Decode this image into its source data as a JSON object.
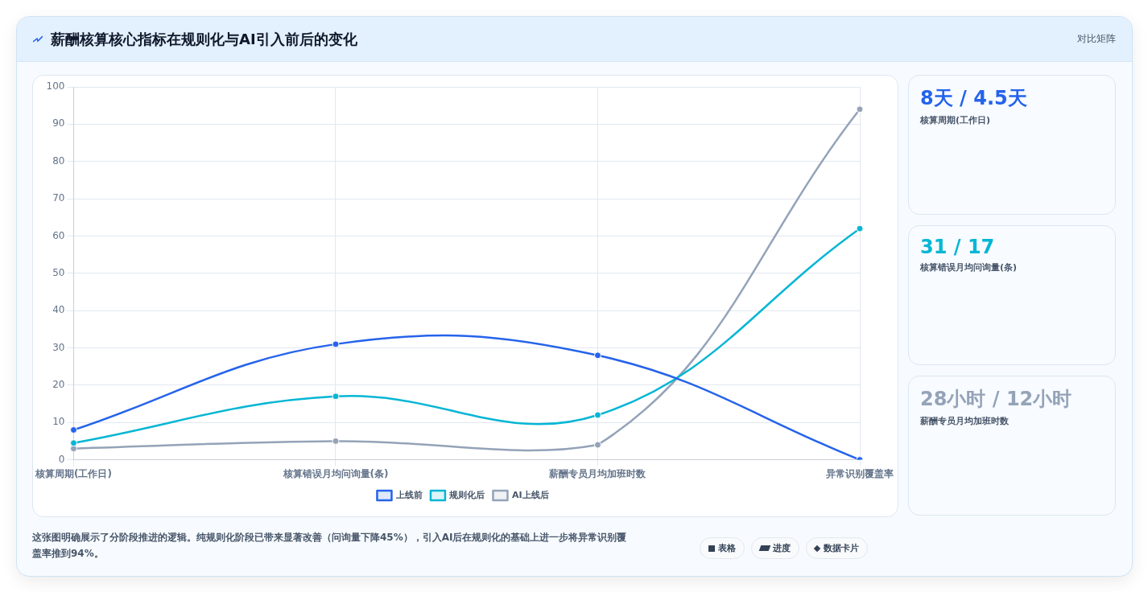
{
  "chart_data": {
    "type": "line",
    "title": "薪酬核算核心指标在规则化与AI引入前后的变化",
    "categories": [
      "核算周期(工作日)",
      "核算错误月均问询量(条)",
      "薪酬专员月均加班时数",
      "异常识别覆盖率"
    ],
    "series": [
      {
        "name": "上线前",
        "color": "#2563eb",
        "values": [
          8,
          31,
          28,
          0
        ]
      },
      {
        "name": "规则化后",
        "color": "#06b6d4",
        "values": [
          4.5,
          17,
          12,
          62
        ]
      },
      {
        "name": "AI上线后",
        "color": "#94a3b8",
        "values": [
          3,
          5,
          4,
          94
        ]
      }
    ],
    "ylim": [
      0,
      100
    ],
    "yticks": [
      0,
      10,
      20,
      30,
      40,
      50,
      60,
      70,
      80,
      90,
      100
    ],
    "grid": true,
    "legend": "bottom",
    "marker": "circle",
    "line_style": "solid",
    "annotations": [
      "对比矩阵",
      "8天 / 4.5天",
      "核算周期(工作日)",
      "31 / 17",
      "核算错误月均问询量(条)",
      "28小时 / 12小时",
      "薪酬专员月均加班时数",
      "这张图明确展示了分阶段推进的逻辑。纯规则化阶段已带来显著改善（问询量下降45%），引入AI后在规则化的基础上进一步将异常识别覆盖率推到94%。",
      "表格",
      "进度",
      "数据卡片"
    ]
  }
}
